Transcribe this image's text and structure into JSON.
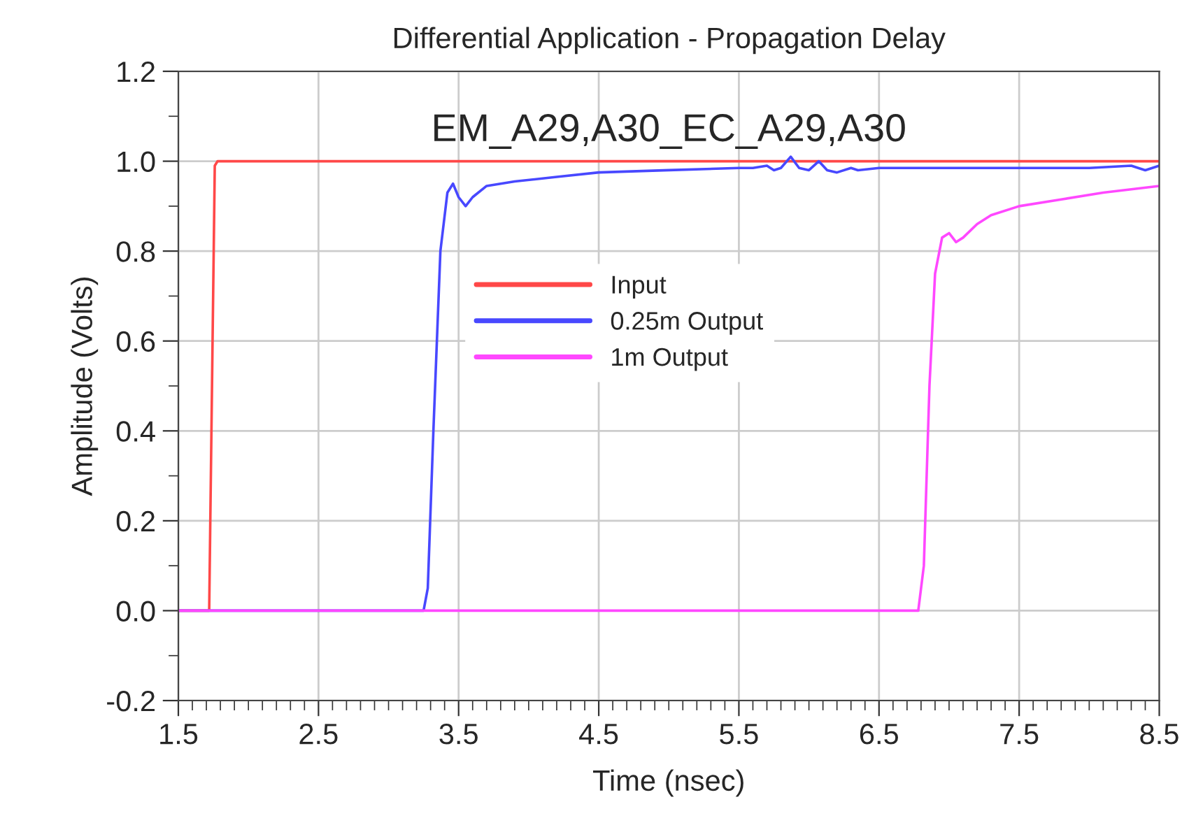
{
  "chart_data": {
    "type": "line",
    "title": "Differential Application - Propagation Delay",
    "xlabel": "Time (nsec)",
    "ylabel": "Amplitude (Volts)",
    "annotations": [
      "EM_A29,A30_EC_A29,A30"
    ],
    "xlim": [
      1.5,
      8.5
    ],
    "xticks": [
      1.5,
      2.5,
      3.5,
      4.5,
      5.5,
      6.5,
      7.5,
      8.5
    ],
    "ylim": [
      -0.2,
      1.2
    ],
    "yticks": [
      {
        "value": -0.2,
        "label": "-0.2"
      },
      {
        "value": 0,
        "label": "0.0"
      },
      {
        "value": 0.2,
        "label": "0.2"
      },
      {
        "value": 0.4,
        "label": "0.4"
      },
      {
        "value": 0.6,
        "label": "0.6"
      },
      {
        "value": 0.8,
        "label": "0.8"
      },
      {
        "value": 1.0,
        "label": "1.0"
      },
      {
        "value": 1.2,
        "label": "1.2"
      }
    ],
    "grid": true,
    "legend": "center",
    "marker": "none",
    "line_style": "solid",
    "series": [
      {
        "name": "Input",
        "color": "#ff4848",
        "x": [
          1.5,
          1.72,
          1.76,
          1.78,
          8.5
        ],
        "values": [
          0,
          0,
          0.99,
          1.0,
          1.0
        ]
      },
      {
        "name": "0.25m Output",
        "color": "#4848ff",
        "x": [
          1.5,
          3.25,
          3.28,
          3.32,
          3.37,
          3.42,
          3.46,
          3.5,
          3.55,
          3.6,
          3.7,
          3.9,
          4.2,
          4.5,
          5.0,
          5.5,
          5.6,
          5.7,
          5.75,
          5.8,
          5.87,
          5.93,
          6.0,
          6.07,
          6.13,
          6.2,
          6.3,
          6.35,
          6.5,
          7.0,
          8.0,
          8.3,
          8.4,
          8.5
        ],
        "values": [
          0,
          0,
          0.05,
          0.4,
          0.8,
          0.93,
          0.95,
          0.92,
          0.9,
          0.92,
          0.945,
          0.955,
          0.965,
          0.975,
          0.98,
          0.985,
          0.985,
          0.99,
          0.98,
          0.985,
          1.01,
          0.985,
          0.98,
          1.0,
          0.98,
          0.975,
          0.985,
          0.98,
          0.985,
          0.985,
          0.985,
          0.99,
          0.98,
          0.99
        ]
      },
      {
        "name": "1m Output",
        "color": "#ff48ff",
        "x": [
          1.5,
          6.78,
          6.82,
          6.86,
          6.9,
          6.95,
          7.0,
          7.05,
          7.1,
          7.2,
          7.3,
          7.5,
          7.8,
          8.1,
          8.5
        ],
        "values": [
          0,
          0,
          0.1,
          0.5,
          0.75,
          0.83,
          0.84,
          0.82,
          0.83,
          0.86,
          0.88,
          0.9,
          0.915,
          0.93,
          0.945
        ]
      }
    ]
  }
}
